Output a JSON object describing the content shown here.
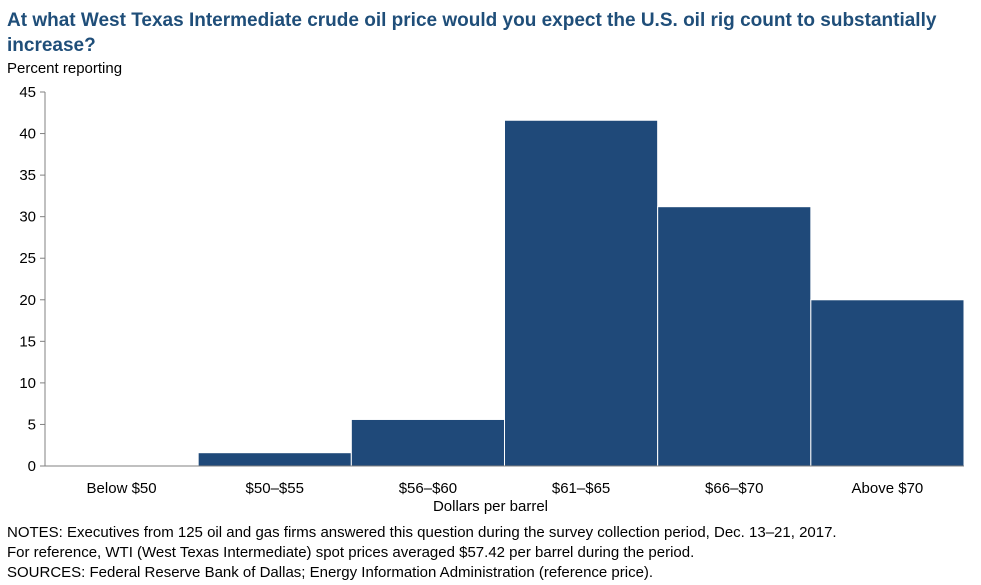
{
  "chart_data": {
    "type": "bar",
    "title": "At what West Texas Intermediate crude oil price would you expect the U.S. oil rig count to substantially increase?",
    "ylabel": "Percent reporting",
    "xlabel": "Dollars  per barrel",
    "categories": [
      "Below $50",
      "$50–$55",
      "$56–$60",
      "$61–$65",
      "$66–$70",
      "Above $70"
    ],
    "values": [
      0,
      1.6,
      5.6,
      41.6,
      31.2,
      20.0
    ],
    "ylim": [
      0,
      45
    ],
    "yticks": [
      "0",
      "5",
      "10",
      "15",
      "20",
      "25",
      "30",
      "35",
      "40",
      "45"
    ],
    "bar_color": "#1f4979",
    "grid": false
  },
  "notes": {
    "line1": "NOTES:  Executives  from 125 oil and gas firms answered  this question  during the survey collection period,  Dec.  13–21,  2017.",
    "line2": "For reference,  WTI (West Texas  Intermediate)  spot prices averaged  $57.42  per barrel during the period.",
    "line3": "SOURCES:  Federal Reserve  Bank of Dallas;  Energy Information  Administration  (reference price)."
  }
}
